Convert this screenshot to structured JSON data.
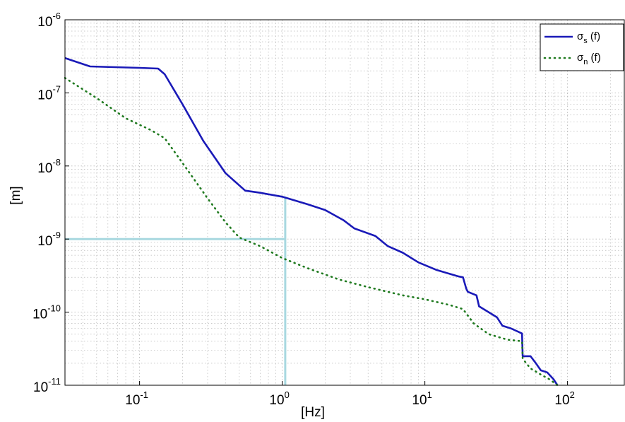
{
  "chart_data": {
    "type": "line",
    "xscale": "log",
    "yscale": "log",
    "xlim": [
      0.03,
      250
    ],
    "ylim": [
      1e-11,
      1e-06
    ],
    "xlabel": "[Hz]",
    "ylabel": "[m]",
    "grid": true,
    "legend_position": "top-right",
    "x_ticks": [
      {
        "value": 0.1,
        "base": "10",
        "exp": "-1"
      },
      {
        "value": 1,
        "base": "10",
        "exp": "0"
      },
      {
        "value": 10,
        "base": "10",
        "exp": "1"
      },
      {
        "value": 100,
        "base": "10",
        "exp": "2"
      }
    ],
    "y_ticks": [
      {
        "value": 1e-06,
        "base": "10",
        "exp": "-6"
      },
      {
        "value": 1e-07,
        "base": "10",
        "exp": "-7"
      },
      {
        "value": 1e-08,
        "base": "10",
        "exp": "-8"
      },
      {
        "value": 1e-09,
        "base": "10",
        "exp": "-9"
      },
      {
        "value": 1e-10,
        "base": "10",
        "exp": "-10"
      },
      {
        "value": 1e-11,
        "base": "10",
        "exp": "-11"
      }
    ],
    "series": [
      {
        "name": "σs (f)",
        "legend_main": "σ",
        "legend_sub": "s",
        "legend_rest": " (f)",
        "style": "solid",
        "color": "#1a1ab8",
        "points": [
          [
            0.03,
            3e-07
          ],
          [
            0.045,
            2.3e-07
          ],
          [
            0.1,
            2.2e-07
          ],
          [
            0.135,
            2.15e-07
          ],
          [
            0.15,
            1.8e-07
          ],
          [
            0.2,
            7e-08
          ],
          [
            0.28,
            2.2e-08
          ],
          [
            0.4,
            8e-09
          ],
          [
            0.55,
            4.6e-09
          ],
          [
            0.7,
            4.3e-09
          ],
          [
            1.0,
            3.8e-09
          ],
          [
            1.5,
            3e-09
          ],
          [
            2.0,
            2.5e-09
          ],
          [
            2.7,
            1.8e-09
          ],
          [
            3.2,
            1.4e-09
          ],
          [
            4.5,
            1.1e-09
          ],
          [
            5.5,
            8e-10
          ],
          [
            7.0,
            6.5e-10
          ],
          [
            9.0,
            4.8e-10
          ],
          [
            12,
            3.8e-10
          ],
          [
            17,
            3.1e-10
          ],
          [
            18.5,
            3e-10
          ],
          [
            19.5,
            2.1e-10
          ],
          [
            20,
            1.9e-10
          ],
          [
            23,
            1.7e-10
          ],
          [
            24,
            1.2e-10
          ],
          [
            28,
            1e-10
          ],
          [
            32,
            8.5e-11
          ],
          [
            35,
            6.5e-11
          ],
          [
            40,
            6e-11
          ],
          [
            46,
            5.3e-11
          ],
          [
            48,
            5.1e-11
          ],
          [
            48.5,
            2.5e-11
          ],
          [
            55,
            2.5e-11
          ],
          [
            60,
            2e-11
          ],
          [
            65,
            1.6e-11
          ],
          [
            72,
            1.5e-11
          ],
          [
            80,
            1.2e-11
          ],
          [
            85,
            1e-11
          ]
        ]
      },
      {
        "name": "σn (f)",
        "legend_main": "σ",
        "legend_sub": "n",
        "legend_rest": " (f)",
        "style": "dotted",
        "color": "#1f7a1f",
        "points": [
          [
            0.03,
            1.6e-07
          ],
          [
            0.05,
            8.5e-08
          ],
          [
            0.08,
            4.5e-08
          ],
          [
            0.12,
            3.1e-08
          ],
          [
            0.15,
            2.4e-08
          ],
          [
            0.2,
            1.1e-08
          ],
          [
            0.3,
            3.6e-09
          ],
          [
            0.4,
            1.7e-09
          ],
          [
            0.5,
            1.05e-09
          ],
          [
            0.7,
            8e-10
          ],
          [
            1.0,
            5.5e-10
          ],
          [
            1.5,
            4e-10
          ],
          [
            2.5,
            2.8e-10
          ],
          [
            4,
            2.2e-10
          ],
          [
            7,
            1.7e-10
          ],
          [
            10,
            1.5e-10
          ],
          [
            15,
            1.25e-10
          ],
          [
            18.5,
            1.1e-10
          ],
          [
            22,
            7e-11
          ],
          [
            28,
            5e-11
          ],
          [
            38,
            4.2e-11
          ],
          [
            48,
            4e-11
          ],
          [
            48.5,
            2.3e-11
          ],
          [
            55,
            1.7e-11
          ],
          [
            65,
            1.4e-11
          ],
          [
            75,
            1.2e-11
          ],
          [
            85,
            1e-11
          ]
        ]
      }
    ],
    "annotations": [
      {
        "type": "hline",
        "y": 1e-09,
        "x_from": 0.03,
        "x_to": 1.05,
        "color": "#a8d8e0"
      },
      {
        "type": "vline",
        "x": 1.05,
        "y_from": 1e-11,
        "y_to": 3.8e-09,
        "color": "#a8d8e0"
      }
    ]
  }
}
